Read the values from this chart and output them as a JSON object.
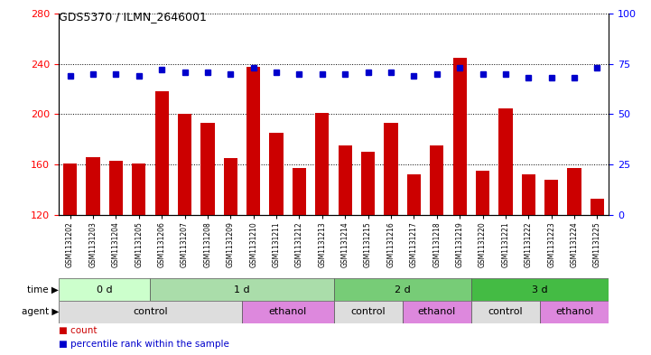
{
  "title": "GDS5370 / ILMN_2646001",
  "samples": [
    "GSM1131202",
    "GSM1131203",
    "GSM1131204",
    "GSM1131205",
    "GSM1131206",
    "GSM1131207",
    "GSM1131208",
    "GSM1131209",
    "GSM1131210",
    "GSM1131211",
    "GSM1131212",
    "GSM1131213",
    "GSM1131214",
    "GSM1131215",
    "GSM1131216",
    "GSM1131217",
    "GSM1131218",
    "GSM1131219",
    "GSM1131220",
    "GSM1131221",
    "GSM1131222",
    "GSM1131223",
    "GSM1131224",
    "GSM1131225"
  ],
  "bar_values": [
    161,
    166,
    163,
    161,
    218,
    200,
    193,
    165,
    238,
    185,
    157,
    201,
    175,
    170,
    193,
    152,
    175,
    245,
    155,
    205,
    152,
    148,
    157,
    133
  ],
  "dot_values_pct": [
    69,
    70,
    70,
    69,
    72,
    71,
    71,
    70,
    73,
    71,
    70,
    70,
    70,
    71,
    71,
    69,
    70,
    73,
    70,
    70,
    68,
    68,
    68,
    73
  ],
  "ylim_left": [
    120,
    280
  ],
  "ylim_right": [
    0,
    100
  ],
  "yticks_left": [
    120,
    160,
    200,
    240,
    280
  ],
  "yticks_right": [
    0,
    25,
    50,
    75,
    100
  ],
  "bar_color": "#cc0000",
  "dot_color": "#0000cc",
  "time_colors": [
    "#ccffcc",
    "#aaddaa",
    "#88cc88",
    "#44bb44"
  ],
  "time_groups": [
    {
      "label": "0 d",
      "start": 0,
      "end": 4
    },
    {
      "label": "1 d",
      "start": 4,
      "end": 12
    },
    {
      "label": "2 d",
      "start": 12,
      "end": 18
    },
    {
      "label": "3 d",
      "start": 18,
      "end": 24
    }
  ],
  "agent_groups": [
    {
      "label": "control",
      "start": 0,
      "end": 8,
      "color": "#dddddd"
    },
    {
      "label": "ethanol",
      "start": 8,
      "end": 12,
      "color": "#dd88dd"
    },
    {
      "label": "control",
      "start": 12,
      "end": 15,
      "color": "#dddddd"
    },
    {
      "label": "ethanol",
      "start": 15,
      "end": 18,
      "color": "#dd88dd"
    },
    {
      "label": "control",
      "start": 18,
      "end": 21,
      "color": "#dddddd"
    },
    {
      "label": "ethanol",
      "start": 21,
      "end": 24,
      "color": "#dd88dd"
    }
  ]
}
